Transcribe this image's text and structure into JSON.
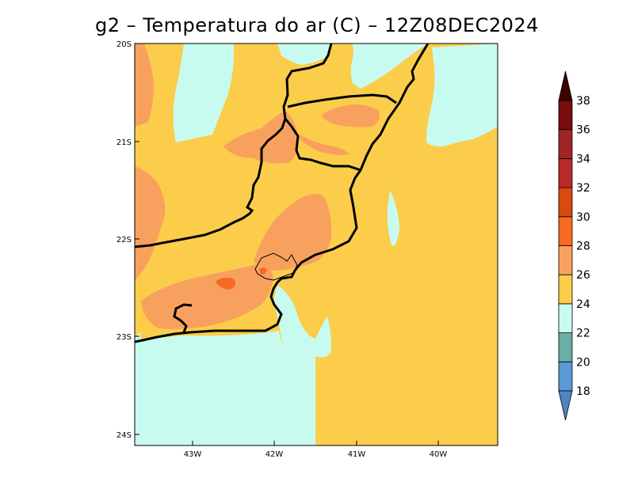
{
  "title": "g2 – Temperatura do ar (C) – 12Z08DEC2024",
  "map": {
    "lat_labels": [
      "20S",
      "21S",
      "22S",
      "23S",
      "24S"
    ],
    "lon_labels": [
      "43W",
      "42W",
      "41W",
      "40W"
    ],
    "lon_range": [
      -43.7,
      -39.7
    ],
    "lat_range": [
      -20,
      -24.1
    ]
  },
  "colorbar": {
    "levels": [
      "18",
      "20",
      "22",
      "24",
      "26",
      "28",
      "30",
      "32",
      "34",
      "36",
      "38"
    ],
    "bin_colors": [
      "#5b9bd5",
      "#6aaea8",
      "#c8fbf0",
      "#fbcd4b",
      "#f8a15f",
      "#f66a22",
      "#d84a10",
      "#b92a2a",
      "#a02424",
      "#7a0d0d"
    ],
    "min_arrow_color": "#4d86c2",
    "max_arrow_color": "#3d0000"
  }
}
